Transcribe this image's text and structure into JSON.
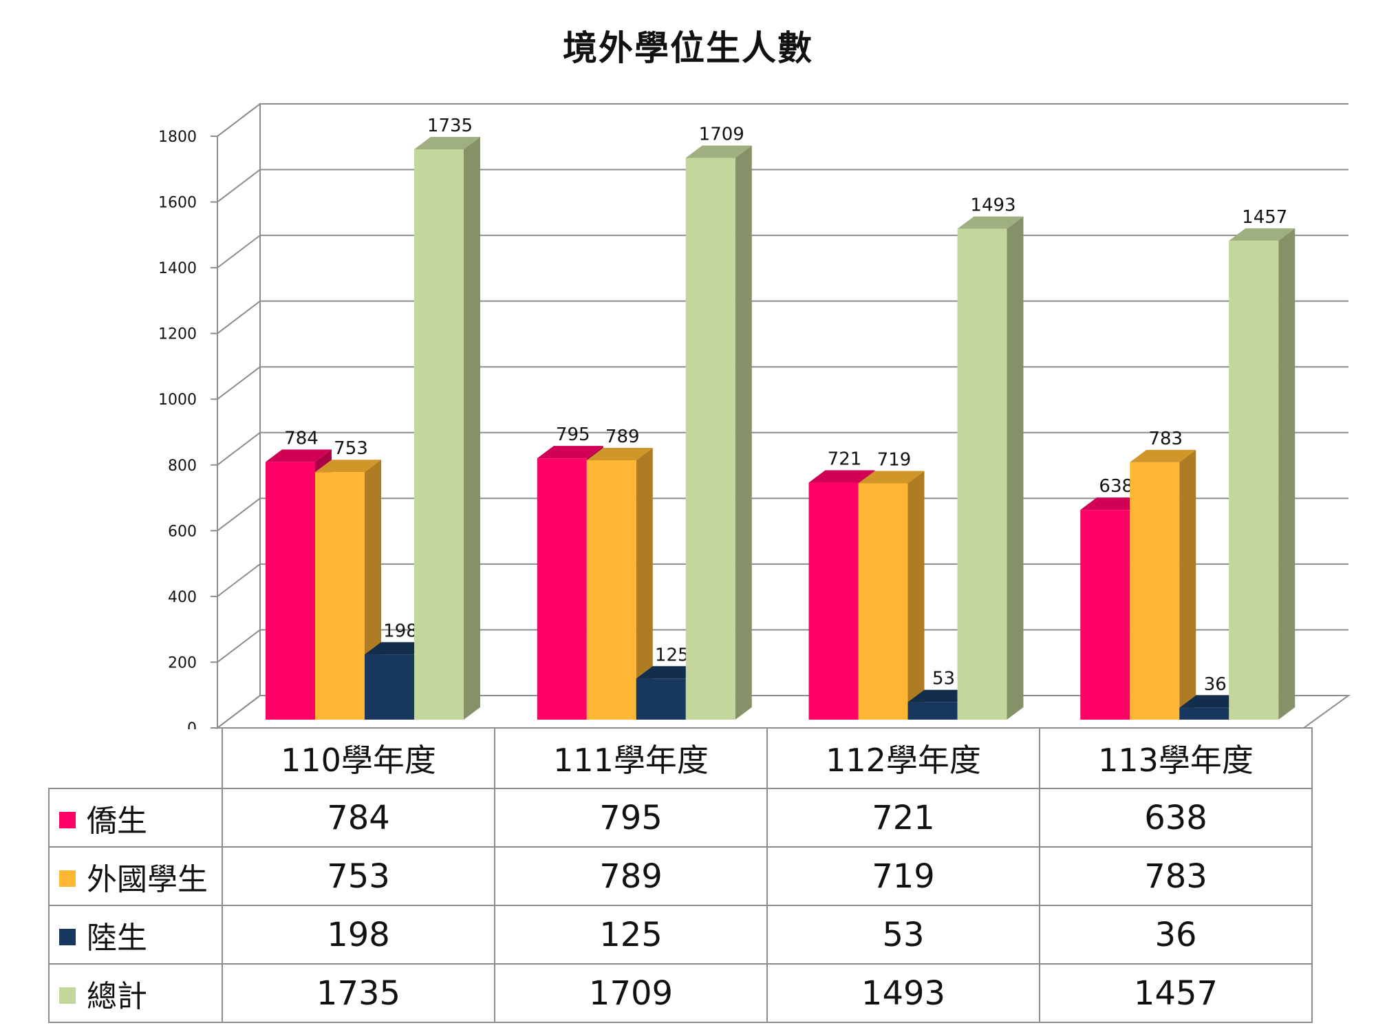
{
  "title": "境外學位生人數",
  "colors": {
    "僑生": "#ff0066",
    "外國學生": "#ffb733",
    "陸生": "#17375e",
    "總計": "#c3d69b"
  },
  "chart_data": {
    "type": "bar",
    "title": "境外學位生人數",
    "categories": [
      "110學年度",
      "111學年度",
      "112學年度",
      "113學年度"
    ],
    "series": [
      {
        "name": "僑生",
        "values": [
          784,
          795,
          721,
          638
        ]
      },
      {
        "name": "外國學生",
        "values": [
          753,
          789,
          719,
          783
        ]
      },
      {
        "name": "陸生",
        "values": [
          198,
          125,
          53,
          36
        ]
      },
      {
        "name": "總計",
        "values": [
          1735,
          1709,
          1493,
          1457
        ]
      }
    ],
    "yticks": [
      "0",
      "200",
      "400",
      "600",
      "800",
      "1000",
      "1200",
      "1400",
      "1600",
      "1800"
    ],
    "ylim": [
      0,
      1800
    ],
    "grid": true,
    "legend": "data-table-below",
    "three_d": true
  }
}
